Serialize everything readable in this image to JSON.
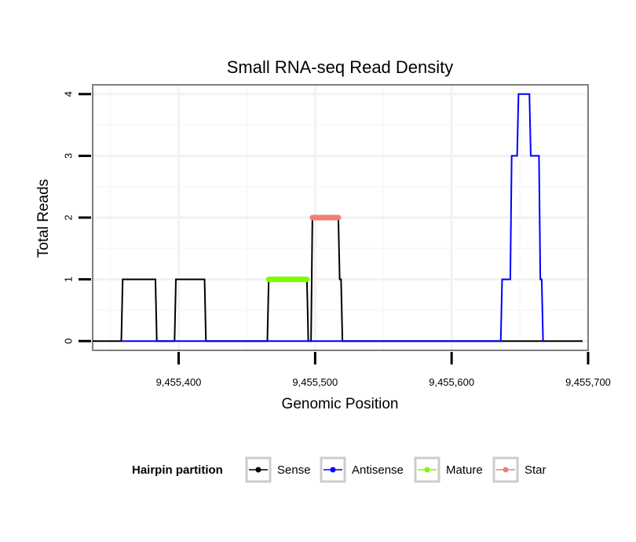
{
  "chart_data": {
    "type": "line",
    "title": "Small RNA-seq Read Density",
    "xlabel": "Genomic Position",
    "ylabel": "Total Reads",
    "xlim": [
      9455337,
      9455700
    ],
    "ylim": [
      -0.15,
      4.15
    ],
    "x_ticks": [
      9455400,
      9455500,
      9455600,
      9455700
    ],
    "x_tick_labels": [
      "9,455,400",
      "9,455,500",
      "9,455,600",
      "9,455,700"
    ],
    "y_ticks": [
      0,
      1,
      2,
      3,
      4
    ],
    "y_tick_labels": [
      "0",
      "1",
      "2",
      "3",
      "4"
    ],
    "grid": true,
    "legend_position": "bottom",
    "legend_title": "Hairpin partition",
    "series": [
      {
        "name": "Sense",
        "color": "#000000",
        "x": [
          9455337,
          9455358,
          9455359,
          9455383,
          9455384,
          9455397,
          9455398,
          9455419,
          9455420,
          9455465,
          9455466,
          9455494,
          9455495,
          9455497,
          9455498,
          9455517,
          9455518,
          9455519,
          9455520,
          9455696
        ],
        "y": [
          0,
          0,
          1,
          1,
          0,
          0,
          1,
          1,
          0,
          0,
          1,
          1,
          0,
          0,
          2,
          2,
          1,
          1,
          0,
          0
        ]
      },
      {
        "name": "Antisense",
        "color": "#0000ff",
        "x": [
          9455358,
          9455383,
          9455397,
          9455419,
          9455466,
          9455494,
          9455498,
          9455519,
          9455636,
          9455637,
          9455643,
          9455644,
          9455648,
          9455649,
          9455657,
          9455658,
          9455664,
          9455665,
          9455666,
          9455667,
          9455668
        ],
        "y": [
          0,
          0,
          0,
          0,
          0,
          0,
          0,
          0,
          0,
          1,
          1,
          3,
          3,
          4,
          4,
          3,
          3,
          1,
          1,
          0,
          0
        ]
      },
      {
        "name": "Mature",
        "color": "#7cfc00",
        "x": [
          9455466,
          9455494
        ],
        "y": [
          1,
          1
        ]
      },
      {
        "name": "Star",
        "color": "#f08070",
        "x": [
          9455498,
          9455517
        ],
        "y": [
          2,
          2
        ]
      }
    ]
  }
}
